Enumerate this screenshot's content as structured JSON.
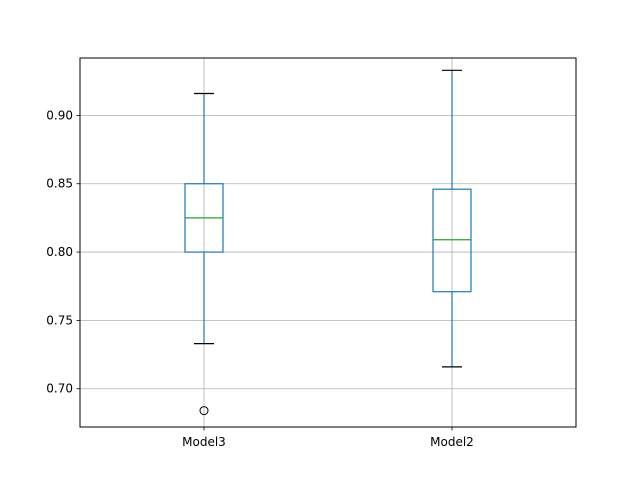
{
  "chart_data": {
    "type": "box",
    "categories": [
      "Model3",
      "Model2"
    ],
    "boxes": [
      {
        "category": "Model3",
        "whisker_low": 0.733,
        "q1": 0.8,
        "median": 0.825,
        "q3": 0.85,
        "whisker_high": 0.916,
        "outliers": [
          0.684
        ]
      },
      {
        "category": "Model2",
        "whisker_low": 0.716,
        "q1": 0.771,
        "median": 0.809,
        "q3": 0.846,
        "whisker_high": 0.933,
        "outliers": []
      }
    ],
    "ylim": [
      0.672,
      0.942
    ],
    "yticks": [
      0.7,
      0.75,
      0.8,
      0.85,
      0.9
    ],
    "ytick_labels": [
      "0.70",
      "0.75",
      "0.80",
      "0.85",
      "0.90"
    ],
    "grid": true,
    "colors": {
      "box": "#1f77b4",
      "median": "#2ca02c",
      "whisker_cap": "#000000",
      "grid": "#b0b0b0"
    }
  }
}
